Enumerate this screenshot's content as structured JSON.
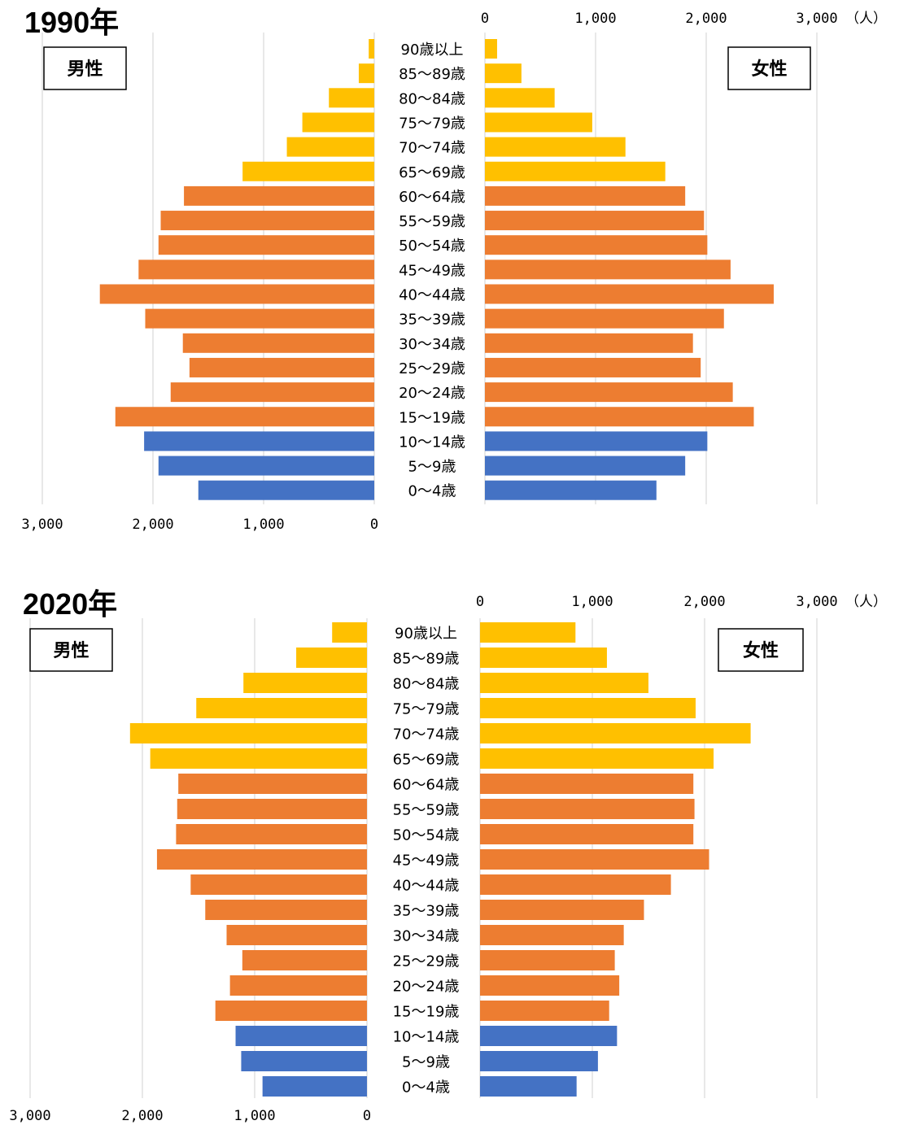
{
  "colors": {
    "young": "#4472C4",
    "working": "#ED7D31",
    "elderly": "#FFC000",
    "grid": "#D9D9D9",
    "box_border": "#000000"
  },
  "chart_data": [
    {
      "type": "bar",
      "subtype": "population-pyramid",
      "title": "1990年",
      "unit": "（人）",
      "left_label": "男性",
      "right_label": "女性",
      "xlim": [
        0,
        3000
      ],
      "x_ticks": [
        "0",
        "1,000",
        "2,000",
        "3,000"
      ],
      "categories": [
        "90歳以上",
        "85～89歳",
        "80～84歳",
        "75～79歳",
        "70～74歳",
        "65～69歳",
        "60～64歳",
        "55～59歳",
        "50～54歳",
        "45～49歳",
        "40～44歳",
        "35～39歳",
        "30～34歳",
        "25～29歳",
        "20～24歳",
        "15～19歳",
        "10～14歳",
        "5～9歳",
        "0～4歳"
      ],
      "age_group": [
        "elderly",
        "elderly",
        "elderly",
        "elderly",
        "elderly",
        "elderly",
        "working",
        "working",
        "working",
        "working",
        "working",
        "working",
        "working",
        "working",
        "working",
        "working",
        "young",
        "young",
        "young"
      ],
      "series": [
        {
          "name": "男性",
          "values": [
            50,
            140,
            410,
            650,
            790,
            1190,
            1720,
            1930,
            1950,
            2130,
            2480,
            2070,
            1730,
            1670,
            1840,
            2340,
            2080,
            1950,
            1590
          ]
        },
        {
          "name": "女性",
          "values": [
            110,
            330,
            630,
            970,
            1270,
            1630,
            1810,
            1980,
            2010,
            2220,
            2610,
            2160,
            1880,
            1950,
            2240,
            2430,
            2010,
            1810,
            1550
          ]
        }
      ]
    },
    {
      "type": "bar",
      "subtype": "population-pyramid",
      "title": "2020年",
      "unit": "（人）",
      "left_label": "男性",
      "right_label": "女性",
      "xlim": [
        0,
        3000
      ],
      "x_ticks": [
        "0",
        "1,000",
        "2,000",
        "3,000"
      ],
      "categories": [
        "90歳以上",
        "85～89歳",
        "80～84歳",
        "75～79歳",
        "70～74歳",
        "65～69歳",
        "60～64歳",
        "55～59歳",
        "50～54歳",
        "45～49歳",
        "40～44歳",
        "35～39歳",
        "30～34歳",
        "25～29歳",
        "20～24歳",
        "15～19歳",
        "10～14歳",
        "5～9歳",
        "0～4歳"
      ],
      "age_group": [
        "elderly",
        "elderly",
        "elderly",
        "elderly",
        "elderly",
        "elderly",
        "working",
        "working",
        "working",
        "working",
        "working",
        "working",
        "working",
        "working",
        "working",
        "working",
        "young",
        "young",
        "young"
      ],
      "series": [
        {
          "name": "男性",
          "values": [
            310,
            630,
            1100,
            1520,
            2110,
            1930,
            1680,
            1690,
            1700,
            1870,
            1570,
            1440,
            1250,
            1110,
            1220,
            1350,
            1170,
            1120,
            930
          ]
        },
        {
          "name": "女性",
          "values": [
            850,
            1130,
            1500,
            1920,
            2410,
            2080,
            1900,
            1910,
            1900,
            2040,
            1700,
            1460,
            1280,
            1200,
            1240,
            1150,
            1220,
            1050,
            860
          ]
        }
      ]
    }
  ]
}
